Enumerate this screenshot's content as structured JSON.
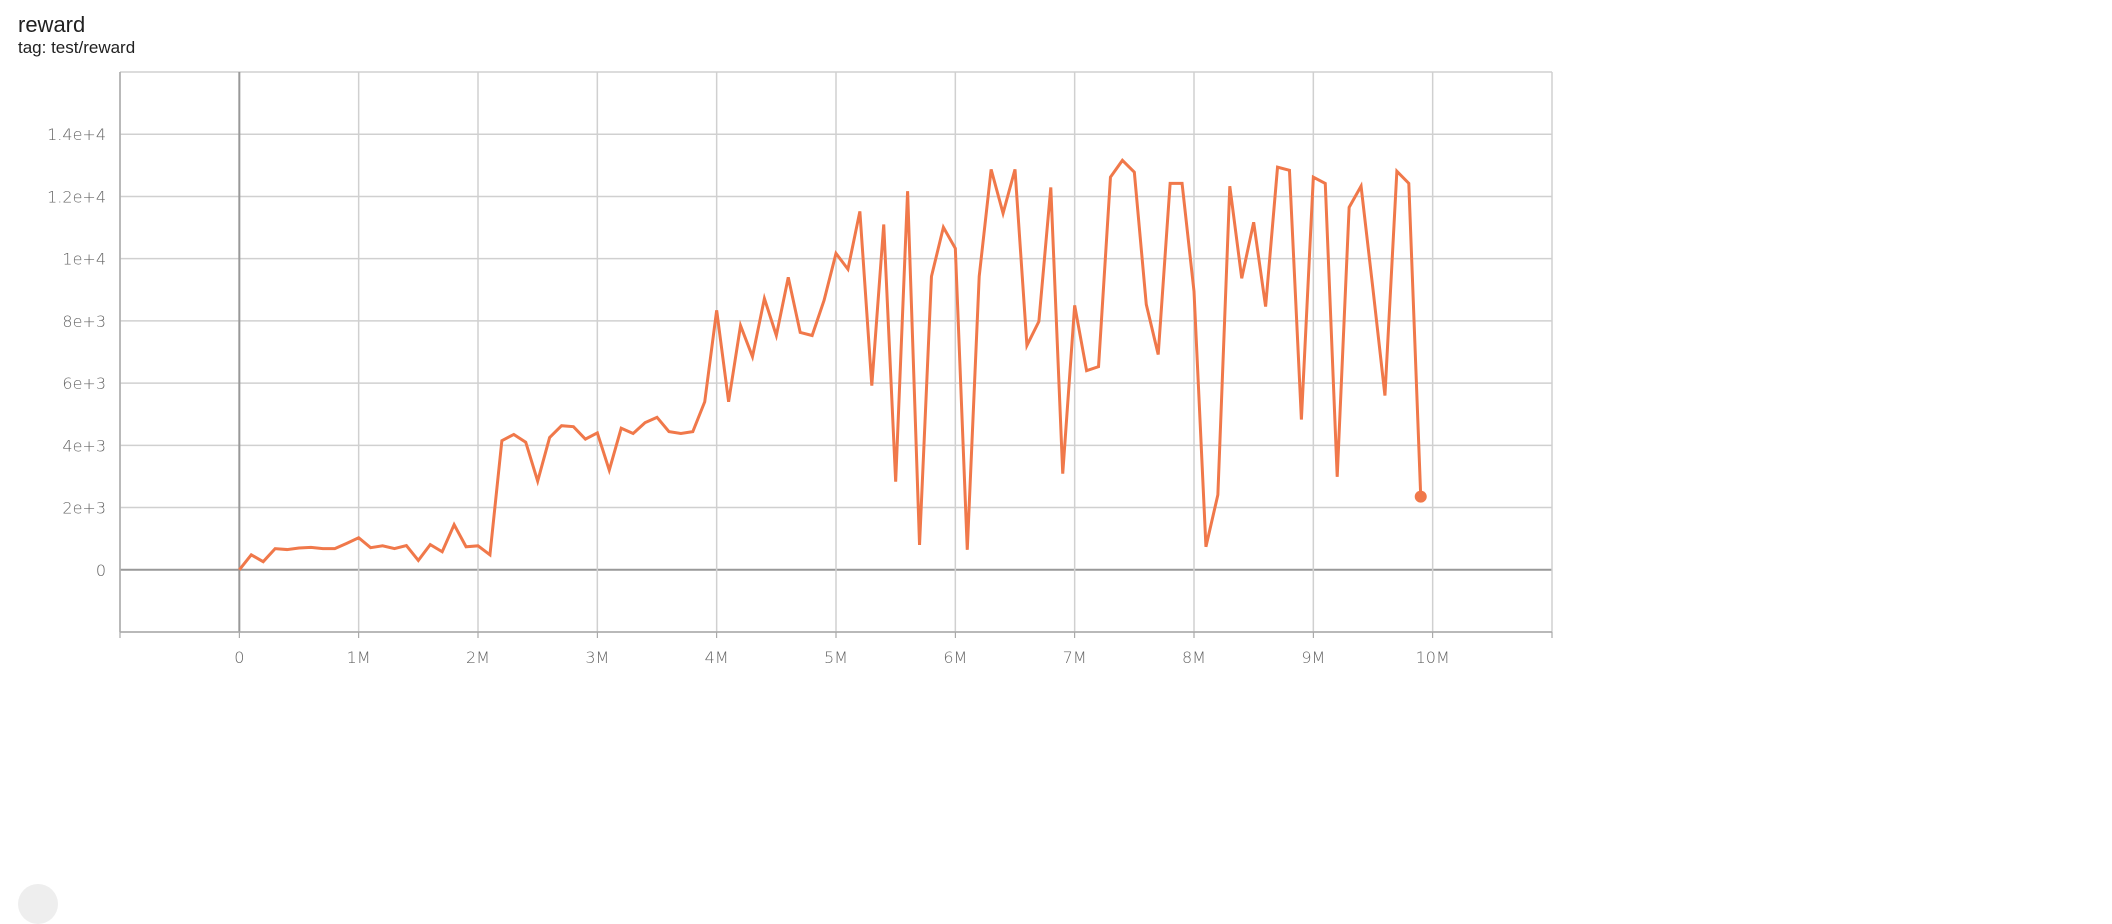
{
  "header": {
    "title": "reward",
    "tag": "tag: test/reward"
  },
  "chart_data": {
    "type": "line",
    "title": "reward",
    "subtitle": "tag: test/reward",
    "xlabel": "",
    "ylabel": "",
    "xlim": [
      -1000000,
      11000000
    ],
    "ylim": [
      -2000,
      16000
    ],
    "grid": true,
    "line_color": "#f0784a",
    "x_ticks": [
      0,
      1000000,
      2000000,
      3000000,
      4000000,
      5000000,
      6000000,
      7000000,
      8000000,
      9000000,
      10000000
    ],
    "x_tick_labels": [
      "0",
      "1M",
      "2M",
      "3M",
      "4M",
      "5M",
      "6M",
      "7M",
      "8M",
      "9M",
      "10M"
    ],
    "y_ticks": [
      0,
      2000,
      4000,
      6000,
      8000,
      10000,
      12000,
      14000
    ],
    "y_tick_labels": [
      "0",
      "2e+3",
      "4e+3",
      "6e+3",
      "8e+3",
      "1e+4",
      "1.2e+4",
      "1.4e+4"
    ],
    "x_step": 100000,
    "values": [
      0,
      480,
      260,
      680,
      650,
      700,
      720,
      680,
      680,
      850,
      1030,
      710,
      770,
      680,
      780,
      300,
      810,
      580,
      1450,
      740,
      770,
      480,
      4150,
      4350,
      4100,
      2850,
      4250,
      4630,
      4600,
      4200,
      4400,
      3200,
      4550,
      4380,
      4730,
      4900,
      4440,
      4380,
      4440,
      5400,
      8340,
      5400,
      7850,
      6850,
      8720,
      7530,
      9400,
      7630,
      7530,
      8660,
      10170,
      9660,
      11520,
      5920,
      11100,
      2830,
      12170,
      800,
      9430,
      11010,
      10330,
      640,
      9430,
      12870,
      11460,
      12870,
      7210,
      7980,
      12290,
      3090,
      8500,
      6400,
      6530,
      12620,
      13160,
      12780,
      8530,
      6920,
      12420,
      12420,
      8950,
      740,
      2410,
      12330,
      9370,
      11170,
      8460,
      12940,
      12840,
      4830,
      12620,
      12420,
      2990,
      11650,
      12330,
      9010,
      5600,
      12810,
      12420,
      2350
    ]
  }
}
